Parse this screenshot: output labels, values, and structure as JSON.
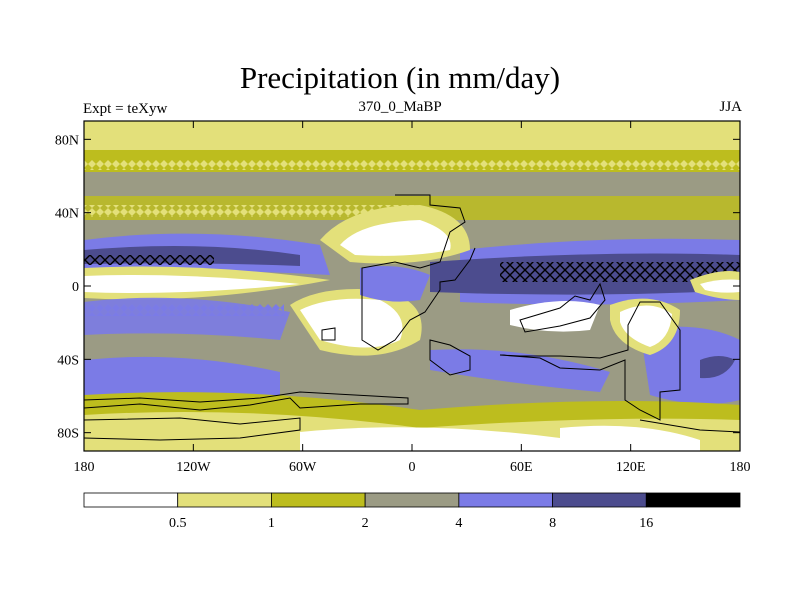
{
  "chart_data": {
    "type": "heatmap",
    "title": "Precipitation (in mm/day)",
    "subtitle_left": "Expt = teXyw",
    "subtitle_center": "370_0_MaBP",
    "subtitle_right": "JJA",
    "x_ticks": [
      "180",
      "120W",
      "60W",
      "0",
      "60E",
      "120E",
      "180"
    ],
    "y_ticks": [
      "80N",
      "40N",
      "0",
      "40S",
      "80S"
    ],
    "lon_range": [
      -180,
      180
    ],
    "lat_range": [
      -90,
      90
    ],
    "colorbar": {
      "levels": [
        "0.5",
        "1",
        "2",
        "4",
        "8",
        "16"
      ],
      "colors": [
        "#ffffff",
        "#e3e07a",
        "#bdbd1e",
        "#9b9b84",
        "#7b7be6",
        "#4c4c8e",
        "#000000"
      ]
    }
  }
}
